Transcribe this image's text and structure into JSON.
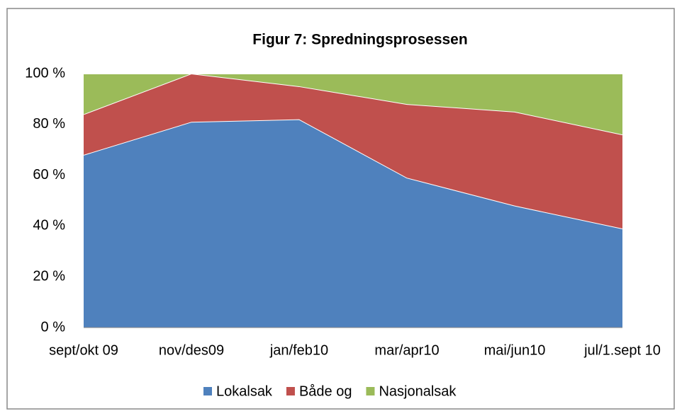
{
  "chart_data": {
    "type": "area",
    "stacked": true,
    "title": "Figur 7: Spredningsprosessen",
    "categories": [
      "sept/okt 09",
      "nov/des09",
      "jan/feb10",
      "mar/apr10",
      "mai/jun10",
      "jul/1.sept 10"
    ],
    "series": [
      {
        "name": "Lokalsak",
        "color": "#4f81bd",
        "values": [
          68,
          81,
          82,
          59,
          48,
          39
        ]
      },
      {
        "name": "Både og",
        "color": "#c0504d",
        "values": [
          16,
          19,
          13,
          29,
          37,
          37
        ]
      },
      {
        "name": "Nasjonalsak",
        "color": "#9bbb59",
        "values": [
          16,
          0,
          5,
          12,
          15,
          24
        ]
      }
    ],
    "ylim": [
      0,
      100
    ],
    "yticks": [
      {
        "value": 0,
        "label": "0 %"
      },
      {
        "value": 20,
        "label": "20 %"
      },
      {
        "value": 40,
        "label": "40 %"
      },
      {
        "value": 60,
        "label": "60 %"
      },
      {
        "value": 80,
        "label": "80 %"
      },
      {
        "value": 100,
        "label": "100 %"
      }
    ],
    "grid": false,
    "legend": "bottom"
  }
}
